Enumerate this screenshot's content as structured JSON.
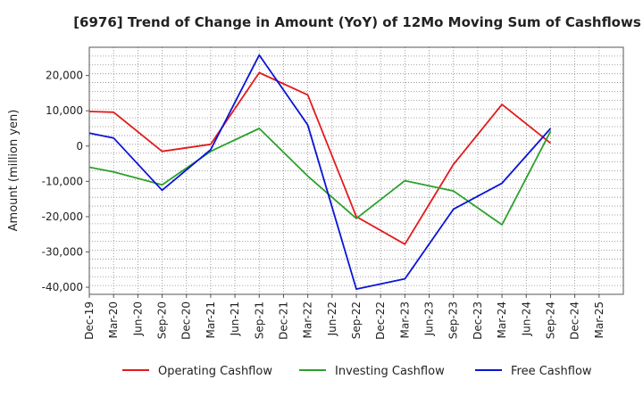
{
  "chart_data": {
    "type": "line",
    "title": "[6976]  Trend of Change in Amount (YoY) of 12Mo Moving Sum of Cashflows",
    "xlabel": "",
    "ylabel": "Amount (million yen)",
    "ylim": [
      -42000,
      28000
    ],
    "yticks": [
      20000,
      10000,
      0,
      -10000,
      -20000,
      -30000,
      -40000
    ],
    "ytick_labels": [
      "20,000",
      "10,000",
      "0",
      "-10,000",
      "-20,000",
      "-30,000",
      "-40,000"
    ],
    "categories": [
      "Dec-19",
      "Mar-20",
      "Jun-20",
      "Sep-20",
      "Dec-20",
      "Mar-21",
      "Jun-21",
      "Sep-21",
      "Dec-21",
      "Mar-22",
      "Jun-22",
      "Sep-22",
      "Dec-22",
      "Mar-23",
      "Jun-23",
      "Sep-23",
      "Dec-23",
      "Mar-24",
      "Jun-24",
      "Sep-24",
      "Dec-24",
      "Mar-25"
    ],
    "grid": true,
    "legend_position": "bottom",
    "series": [
      {
        "name": "Operating Cashflow",
        "color": "#e31a1c",
        "points": [
          {
            "i": 0,
            "v": 9800
          },
          {
            "i": 1,
            "v": 9600
          },
          {
            "i": 3,
            "v": -1500
          },
          {
            "i": 5,
            "v": 500
          },
          {
            "i": 7,
            "v": 20800
          },
          {
            "i": 9,
            "v": 14500
          },
          {
            "i": 11,
            "v": -20000
          },
          {
            "i": 13,
            "v": -27800
          },
          {
            "i": 15,
            "v": -5200
          },
          {
            "i": 17,
            "v": 11800
          },
          {
            "i": 19,
            "v": 800
          }
        ]
      },
      {
        "name": "Investing Cashflow",
        "color": "#2ca02c",
        "points": [
          {
            "i": 0,
            "v": -6000
          },
          {
            "i": 1,
            "v": -7300
          },
          {
            "i": 3,
            "v": -11000
          },
          {
            "i": 5,
            "v": -1500
          },
          {
            "i": 7,
            "v": 5000
          },
          {
            "i": 9,
            "v": -8500
          },
          {
            "i": 11,
            "v": -20500
          },
          {
            "i": 13,
            "v": -9800
          },
          {
            "i": 15,
            "v": -12700
          },
          {
            "i": 17,
            "v": -22300
          },
          {
            "i": 19,
            "v": 4200
          }
        ]
      },
      {
        "name": "Free Cashflow",
        "color": "#0a14d6",
        "points": [
          {
            "i": 0,
            "v": 3700
          },
          {
            "i": 1,
            "v": 2300
          },
          {
            "i": 3,
            "v": -12500
          },
          {
            "i": 5,
            "v": -1000
          },
          {
            "i": 7,
            "v": 25800
          },
          {
            "i": 9,
            "v": 6000
          },
          {
            "i": 11,
            "v": -40500
          },
          {
            "i": 13,
            "v": -37600
          },
          {
            "i": 15,
            "v": -17900
          },
          {
            "i": 17,
            "v": -10500
          },
          {
            "i": 19,
            "v": 5000
          }
        ]
      }
    ]
  }
}
